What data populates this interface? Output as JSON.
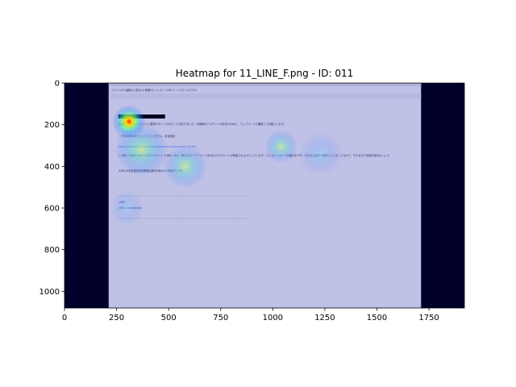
{
  "chart_data": {
    "type": "heatmap",
    "title": "Heatmap for 11_LINE_F.png - ID: 011",
    "xlim": [
      0,
      1920
    ],
    "ylim": [
      1080,
      0
    ],
    "x_ticks": [
      0,
      250,
      500,
      750,
      1000,
      1250,
      1500,
      1750
    ],
    "y_ticks": [
      0,
      200,
      400,
      600,
      800,
      1000
    ],
    "xlabel": "",
    "ylabel": "",
    "grid": false,
    "colormap": "jet",
    "background_color": "#00002a",
    "screenshot_region": {
      "x": [
        212,
        1712
      ],
      "y": [
        0,
        1080
      ]
    },
    "hotspots": [
      {
        "x": 310,
        "y": 185,
        "intensity": 0.95,
        "radius": 70
      },
      {
        "x": 370,
        "y": 320,
        "intensity": 0.55,
        "radius": 110
      },
      {
        "x": 580,
        "y": 400,
        "intensity": 0.45,
        "radius": 90
      },
      {
        "x": 1040,
        "y": 305,
        "intensity": 0.4,
        "radius": 70
      },
      {
        "x": 1230,
        "y": 340,
        "intensity": 0.28,
        "radius": 90
      },
      {
        "x": 300,
        "y": 600,
        "intensity": 0.2,
        "radius": 70
      }
    ]
  },
  "email": {
    "menu_items": [
      "ファイル(F)",
      "編集(E)",
      "表示(V)",
      "移動(G)",
      "メッセージ(M)",
      "ツール(T)",
      "ヘルプ(H)"
    ],
    "body_lines": [
      "お客様のLINEアカウントに異常ログインされたことがありました。お客様のアカウントの安全のために、ウェブページで確認してお願いします。",
      "こちらのURLをクリックしてください。安全認証",
      "https://www.rtfiukuuk.com/member/ask.asp?cursoId=93494",
      "この時、日本のLINEへ公式アカウント（LINE）から「他のスマートフォンであなたのアカウントが使用されようとしています」というメッセージが届きますが、もちろん自分で操作していることなので、そのままで手順を進めましょう。",
      "※URLの安全認証有効期限は毎日0時から15時までです。"
    ],
    "signature": [
      "LINE",
      "LINE Corporation"
    ]
  }
}
